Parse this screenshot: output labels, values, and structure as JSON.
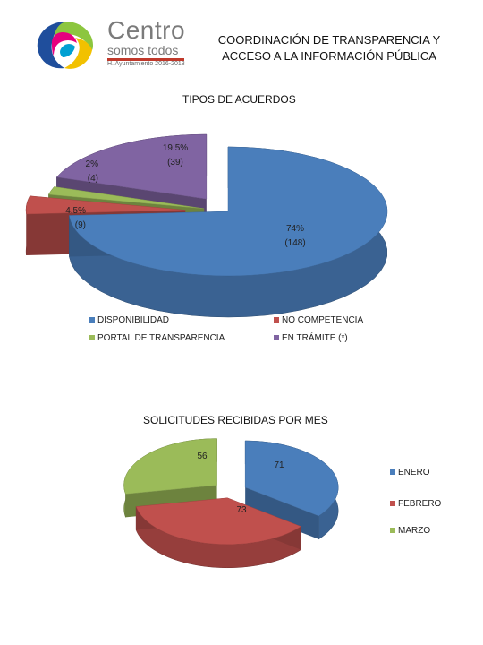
{
  "header": {
    "logo": {
      "word": "Centro",
      "tagline": "somos todos",
      "period": "H. Ayuntamiento 2016-2018"
    },
    "title_line1": "COORDINACIÓN DE TRANSPARENCIA Y",
    "title_line2": "ACCESO A LA INFORMACIÓN PÚBLICA"
  },
  "chart_data": [
    {
      "type": "pie",
      "title": "TIPOS DE ACUERDOS",
      "three_d": true,
      "legend_position": "bottom",
      "categories": [
        "DISPONIBILIDAD",
        "NO COMPETENCIA",
        "PORTAL DE TRANSPARENCIA",
        "EN TRÁMITE (*)"
      ],
      "values": [
        148,
        9,
        4,
        39
      ],
      "percent_labels": [
        "74%",
        "4.5%",
        "2%",
        "19.5%"
      ],
      "count_labels": [
        "(148)",
        "(9)",
        "(4)",
        "(39)"
      ],
      "colors": [
        "#4a7ebb",
        "#c0504d",
        "#9bbb59",
        "#8064a2"
      ]
    },
    {
      "type": "pie",
      "title": "SOLICITUDES RECIBIDAS POR MES",
      "three_d": true,
      "legend_position": "right",
      "categories": [
        "ENERO",
        "FEBRERO",
        "MARZO"
      ],
      "values": [
        71,
        73,
        56
      ],
      "data_labels": [
        "71",
        "73",
        "56"
      ],
      "colors": [
        "#4a7ebb",
        "#c0504d",
        "#9bbb59"
      ]
    }
  ]
}
